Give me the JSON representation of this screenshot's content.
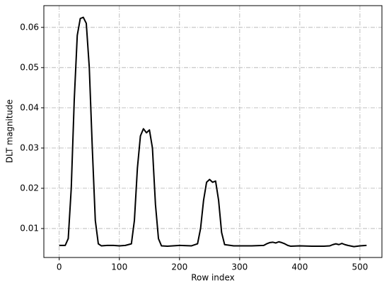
{
  "chart_data": {
    "type": "line",
    "xlabel": "Row index",
    "ylabel": "DLT magnitude",
    "x": [
      0,
      10,
      15,
      20,
      25,
      30,
      35,
      40,
      45,
      50,
      55,
      60,
      65,
      70,
      80,
      90,
      100,
      110,
      120,
      125,
      130,
      135,
      140,
      145,
      150,
      155,
      160,
      165,
      170,
      180,
      200,
      220,
      230,
      235,
      240,
      245,
      250,
      255,
      260,
      265,
      270,
      275,
      290,
      320,
      340,
      345,
      350,
      355,
      360,
      365,
      370,
      375,
      380,
      385,
      400,
      420,
      440,
      450,
      455,
      460,
      465,
      470,
      475,
      480,
      490,
      500,
      511
    ],
    "series": [
      {
        "color": "#000000",
        "values": [
          0.0058,
          0.0058,
          0.0075,
          0.02,
          0.042,
          0.058,
          0.0622,
          0.0625,
          0.061,
          0.05,
          0.03,
          0.012,
          0.0062,
          0.0057,
          0.0058,
          0.0058,
          0.0057,
          0.0058,
          0.0062,
          0.012,
          0.025,
          0.033,
          0.0348,
          0.0338,
          0.0345,
          0.03,
          0.016,
          0.0075,
          0.0057,
          0.0056,
          0.0058,
          0.0057,
          0.0062,
          0.01,
          0.017,
          0.0215,
          0.0222,
          0.0215,
          0.0218,
          0.017,
          0.009,
          0.006,
          0.0057,
          0.0057,
          0.0058,
          0.0062,
          0.0065,
          0.0066,
          0.0064,
          0.0067,
          0.0065,
          0.0062,
          0.0058,
          0.0056,
          0.0057,
          0.0056,
          0.0056,
          0.0057,
          0.006,
          0.0062,
          0.006,
          0.0063,
          0.006,
          0.0058,
          0.0055,
          0.0057,
          0.0058
        ]
      }
    ],
    "xlim": [
      -25.55,
      536.55
    ],
    "xticks": [
      0,
      100,
      200,
      300,
      400,
      500
    ],
    "ylim": [
      0.0028,
      0.0654
    ],
    "yticks": [
      0.01,
      0.02,
      0.03,
      0.04,
      0.05,
      0.06
    ],
    "grid": true
  }
}
